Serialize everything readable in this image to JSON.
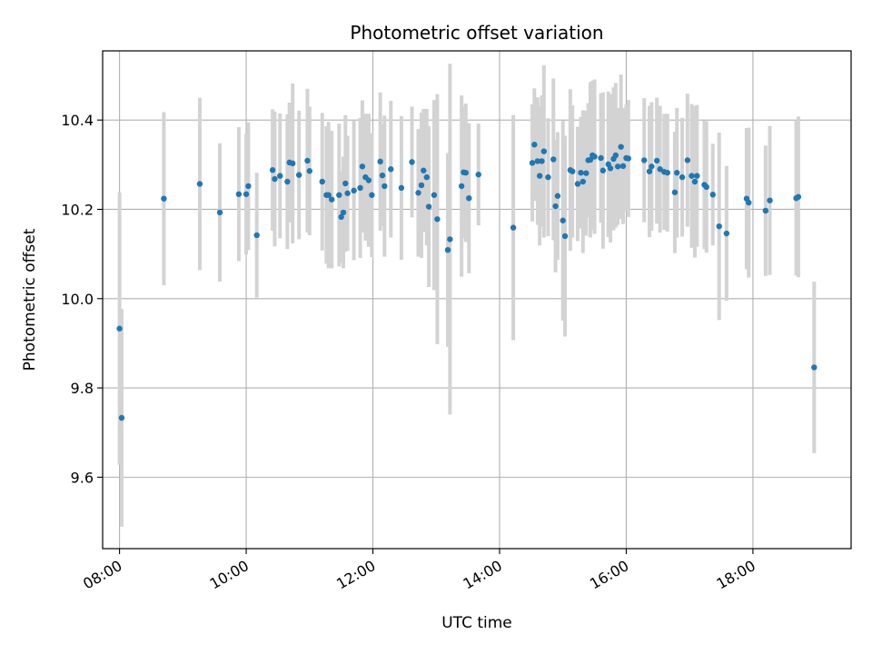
{
  "chart_data": {
    "type": "scatter",
    "title": "Photometric offset variation",
    "xlabel": "UTC time",
    "ylabel": "Photometric offset",
    "x_unit": "UTC time (HH:MM)",
    "xlim": [
      "07:44",
      "19:33"
    ],
    "ylim": [
      9.44,
      10.555
    ],
    "xticks": [
      "08:00",
      "10:00",
      "12:00",
      "14:00",
      "16:00",
      "18:00"
    ],
    "yticks": [
      "9.6",
      "9.8",
      "10.0",
      "10.2",
      "10.4"
    ],
    "grid": true,
    "colors": {
      "points": "#1f77b4",
      "error_bars": "#d3d3d3",
      "grid": "#b0b0b0"
    },
    "series": [
      {
        "x": [
          "08:00",
          "08:02",
          "08:42",
          "09:16",
          "09:35",
          "09:53",
          "10:00",
          "10:02",
          "10:10",
          "10:25",
          "10:27",
          "10:32",
          "10:39",
          "10:41",
          "10:44",
          "10:50",
          "10:58",
          "11:00",
          "11:12",
          "11:16",
          "11:18",
          "11:21",
          "11:28",
          "11:30",
          "11:32",
          "11:34",
          "11:36",
          "11:42",
          "11:48",
          "11:50",
          "11:53",
          "11:56",
          "11:59",
          "12:07",
          "12:09",
          "12:11",
          "12:17",
          "12:27",
          "12:37",
          "12:43",
          "12:46",
          "12:48",
          "12:51",
          "12:53",
          "12:58",
          "13:01",
          "13:11",
          "13:13",
          "13:24",
          "13:26",
          "13:28",
          "13:31",
          "13:40",
          "14:13",
          "14:31",
          "14:33",
          "14:36",
          "14:38",
          "14:40",
          "14:42",
          "14:46",
          "14:51",
          "14:53",
          "14:55",
          "15:00",
          "15:02",
          "15:07",
          "15:09",
          "15:14",
          "15:17",
          "15:19",
          "15:22",
          "15:24",
          "15:26",
          "15:28",
          "15:30",
          "15:36",
          "15:38",
          "15:43",
          "15:45",
          "15:48",
          "15:50",
          "15:52",
          "15:55",
          "15:57",
          "16:00",
          "16:02",
          "16:17",
          "16:22",
          "16:24",
          "16:29",
          "16:32",
          "16:36",
          "16:39",
          "16:46",
          "16:48",
          "16:53",
          "16:58",
          "17:02",
          "17:05",
          "17:07",
          "17:14",
          "17:16",
          "17:22",
          "17:28",
          "17:35",
          "17:54",
          "17:56",
          "18:12",
          "18:16",
          "18:41",
          "18:43",
          "18:58"
        ],
        "y": [
          9.933,
          9.733,
          10.224,
          10.257,
          10.193,
          10.234,
          10.234,
          10.252,
          10.142,
          10.288,
          10.268,
          10.275,
          10.262,
          10.305,
          10.303,
          10.277,
          10.309,
          10.286,
          10.262,
          10.232,
          10.232,
          10.222,
          10.232,
          10.183,
          10.193,
          10.258,
          10.236,
          10.242,
          10.248,
          10.296,
          10.272,
          10.265,
          10.232,
          10.307,
          10.276,
          10.252,
          10.29,
          10.248,
          10.306,
          10.237,
          10.254,
          10.287,
          10.272,
          10.206,
          10.232,
          10.178,
          10.109,
          10.133,
          10.252,
          10.283,
          10.282,
          10.225,
          10.278,
          10.159,
          10.304,
          10.345,
          10.308,
          10.275,
          10.308,
          10.33,
          10.272,
          10.312,
          10.207,
          10.23,
          10.175,
          10.14,
          10.288,
          10.285,
          10.257,
          10.282,
          10.262,
          10.281,
          10.31,
          10.311,
          10.321,
          10.318,
          10.315,
          10.287,
          10.301,
          10.292,
          10.313,
          10.321,
          10.296,
          10.34,
          10.297,
          10.315,
          10.314,
          10.31,
          10.285,
          10.296,
          10.309,
          10.29,
          10.284,
          10.282,
          10.238,
          10.282,
          10.272,
          10.31,
          10.275,
          10.262,
          10.275,
          10.255,
          10.25,
          10.233,
          10.162,
          10.146,
          10.224,
          10.215,
          10.197,
          10.22,
          10.225,
          10.228,
          9.846
        ],
        "err": [
          0.305,
          0.244,
          0.194,
          0.193,
          0.155,
          0.15,
          0.135,
          0.143,
          0.14,
          0.136,
          0.151,
          0.14,
          0.151,
          0.134,
          0.179,
          0.144,
          0.161,
          0.144,
          0.154,
          0.154,
          0.164,
          0.154,
          0.16,
          0.102,
          0.125,
          0.153,
          0.129,
          0.156,
          0.157,
          0.148,
          0.142,
          0.149,
          0.139,
          0.155,
          0.114,
          0.158,
          0.153,
          0.161,
          0.124,
          0.143,
          0.163,
          0.138,
          0.153,
          0.18,
          0.213,
          0.28,
          0.217,
          0.393,
          0.203,
          0.148,
          0.155,
          0.168,
          0.114,
          0.252,
          0.131,
          0.126,
          0.143,
          0.156,
          0.147,
          0.193,
          0.132,
          0.181,
          0.148,
          0.143,
          0.224,
          0.225,
          0.181,
          0.148,
          0.128,
          0.125,
          0.16,
          0.14,
          0.128,
          0.174,
          0.167,
          0.173,
          0.145,
          0.175,
          0.163,
          0.166,
          0.16,
          0.162,
          0.131,
          0.162,
          0.13,
          0.12,
          0.131,
          0.139,
          0.147,
          0.144,
          0.141,
          0.142,
          0.13,
          0.132,
          0.136,
          0.145,
          0.133,
          0.149,
          0.161,
          0.17,
          0.159,
          0.144,
          0.147,
          0.114,
          0.21,
          0.151,
          0.158,
          0.168,
          0.146,
          0.167,
          0.173,
          0.18,
          0.192
        ]
      }
    ]
  }
}
